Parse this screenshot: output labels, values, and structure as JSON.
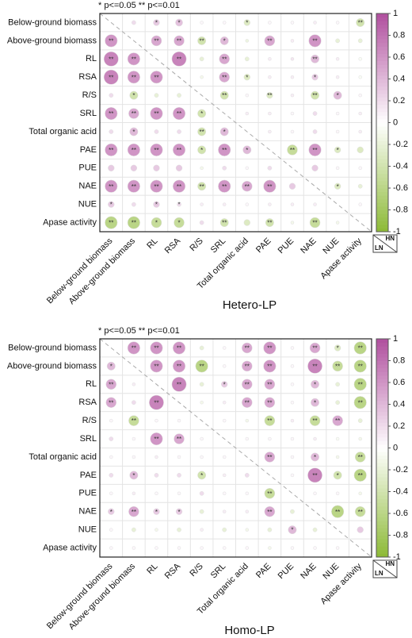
{
  "chart_data": [
    {
      "type": "corrplot",
      "title": "Hetero-LP",
      "note": "* p<=0.05  ** p<=0.01",
      "variables": [
        "Below-ground biomass",
        "Above-ground biomass",
        "RL",
        "RSA",
        "R/S",
        "SRL",
        "Total organic acid",
        "PAE",
        "PUE",
        "NAE",
        "NUE",
        "Apase activity"
      ],
      "corner_labels": {
        "upper": "HN",
        "lower": "LN"
      },
      "clim": [
        -1,
        1
      ],
      "cticks": [
        1,
        0.8,
        0.6,
        0.4,
        0.2,
        0,
        -0.2,
        -0.4,
        -0.6,
        -0.8,
        -1
      ],
      "colors": {
        "negative": "#8cb935",
        "zero": "#ffffff",
        "positive": "#b04f9e"
      },
      "values": [
        [
          null,
          0.2,
          0.3,
          0.35,
          0.05,
          0.05,
          -0.3,
          0.05,
          0.05,
          0.1,
          0.05,
          -0.4
        ],
        [
          0.6,
          null,
          0.5,
          0.5,
          -0.4,
          0.4,
          -0.15,
          0.5,
          0.1,
          0.6,
          -0.2,
          -0.2
        ],
        [
          0.7,
          0.6,
          null,
          0.7,
          -0.2,
          0.5,
          -0.2,
          0.1,
          0.15,
          0.4,
          0.1,
          -0.05
        ],
        [
          0.7,
          0.6,
          0.6,
          null,
          -0.1,
          0.5,
          -0.3,
          0.1,
          0.1,
          0.3,
          0.1,
          -0.05
        ],
        [
          0.2,
          -0.4,
          -0.2,
          -0.2,
          null,
          -0.4,
          0.05,
          -0.3,
          0.1,
          -0.4,
          0.4,
          0.05
        ],
        [
          0.6,
          0.5,
          0.6,
          0.6,
          -0.4,
          null,
          0.1,
          0.1,
          0.05,
          0.2,
          0.05,
          0.1
        ],
        [
          0.2,
          0.4,
          0.2,
          0.2,
          -0.4,
          0.4,
          null,
          0.1,
          0.05,
          0.2,
          0.05,
          0.1
        ],
        [
          0.6,
          0.6,
          0.6,
          0.6,
          -0.4,
          0.6,
          0.4,
          null,
          -0.5,
          0.6,
          -0.3,
          -0.3
        ],
        [
          0.3,
          0.3,
          0.3,
          0.3,
          -0.1,
          0.2,
          0.05,
          0.2,
          null,
          0.3,
          0.05,
          0.05
        ],
        [
          0.6,
          0.6,
          0.6,
          0.6,
          -0.4,
          0.6,
          0.5,
          0.6,
          0.3,
          null,
          -0.3,
          -0.2
        ],
        [
          0.3,
          0.2,
          0.3,
          0.2,
          0.1,
          0.1,
          0.05,
          0.1,
          0.1,
          0.1,
          null,
          0.05
        ],
        [
          -0.6,
          -0.6,
          -0.5,
          -0.5,
          0.2,
          -0.4,
          -0.3,
          -0.4,
          -0.1,
          -0.5,
          -0.1,
          null
        ]
      ],
      "significance": [
        [
          null,
          null,
          "*",
          "*",
          null,
          null,
          "*",
          null,
          null,
          null,
          null,
          "**"
        ],
        [
          "**",
          null,
          "**",
          "**",
          "**",
          "*",
          null,
          "**",
          null,
          "**",
          null,
          null
        ],
        [
          "**",
          "**",
          null,
          "**",
          null,
          "**",
          null,
          null,
          null,
          "**",
          null,
          null
        ],
        [
          "**",
          "**",
          "**",
          null,
          null,
          "**",
          "*",
          null,
          null,
          "*",
          null,
          null
        ],
        [
          null,
          "*",
          null,
          null,
          null,
          "**",
          null,
          "**",
          null,
          "**",
          "*",
          null
        ],
        [
          "**",
          "**",
          "**",
          "**",
          "*",
          null,
          null,
          null,
          null,
          null,
          null,
          null
        ],
        [
          null,
          "*",
          null,
          null,
          "**",
          "*",
          null,
          null,
          null,
          null,
          null,
          null
        ],
        [
          "**",
          "**",
          "**",
          "**",
          "*",
          "**",
          "*",
          null,
          "**",
          "**",
          "*",
          null
        ],
        [
          null,
          null,
          null,
          null,
          null,
          null,
          null,
          null,
          null,
          null,
          null,
          null
        ],
        [
          "**",
          "**",
          "**",
          "**",
          "**",
          "**",
          "**",
          "**",
          null,
          null,
          "*",
          null
        ],
        [
          "*",
          null,
          "*",
          "*",
          null,
          null,
          null,
          null,
          null,
          null,
          null,
          null
        ],
        [
          "**",
          "**",
          "*",
          "*",
          null,
          "**",
          null,
          "**",
          null,
          "**",
          null,
          null
        ]
      ]
    },
    {
      "type": "corrplot",
      "title": "Homo-LP",
      "note": "* p<=0.05  ** p<=0.01",
      "variables": [
        "Below-ground biomass",
        "Above-ground biomass",
        "RL",
        "RSA",
        "R/S",
        "SRL",
        "Total organic acid",
        "PAE",
        "PUE",
        "NAE",
        "NUE",
        "Apase activity"
      ],
      "corner_labels": {
        "upper": "HN",
        "lower": "LN"
      },
      "clim": [
        -1,
        1
      ],
      "cticks": [
        1,
        0.8,
        0.6,
        0.4,
        0.2,
        0,
        -0.2,
        -0.4,
        -0.6,
        -0.8,
        -1
      ],
      "colors": {
        "negative": "#8cb935",
        "zero": "#ffffff",
        "positive": "#b04f9e"
      },
      "values": [
        [
          null,
          0.6,
          0.6,
          0.6,
          -0.2,
          0.05,
          0.5,
          0.6,
          0.05,
          0.5,
          -0.3,
          -0.6
        ],
        [
          0.4,
          null,
          0.6,
          0.6,
          -0.6,
          0.05,
          0.5,
          0.6,
          0.05,
          0.7,
          -0.5,
          -0.6
        ],
        [
          0.5,
          0.1,
          null,
          0.7,
          -0.2,
          0.3,
          0.5,
          0.5,
          0.05,
          0.4,
          -0.2,
          -0.6
        ],
        [
          0.5,
          0.2,
          0.7,
          null,
          -0.1,
          0.1,
          0.5,
          0.5,
          0.05,
          0.4,
          -0.2,
          -0.6
        ],
        [
          0.05,
          -0.5,
          0.05,
          0.05,
          null,
          0.05,
          -0.1,
          -0.5,
          0.1,
          -0.5,
          0.5,
          -0.2
        ],
        [
          0.2,
          0.05,
          0.6,
          0.5,
          0.05,
          null,
          0.05,
          0.05,
          0.05,
          0.1,
          -0.05,
          -0.1
        ],
        [
          0.05,
          0.05,
          0.1,
          0.05,
          0.05,
          0.05,
          null,
          0.5,
          0.05,
          0.4,
          -0.1,
          -0.5
        ],
        [
          0.2,
          0.4,
          0.2,
          0.2,
          -0.4,
          0.1,
          0.2,
          null,
          0.05,
          0.7,
          -0.4,
          -0.6
        ],
        [
          0.05,
          0.1,
          0.05,
          0.05,
          0.2,
          0.05,
          0.05,
          -0.5,
          null,
          0.05,
          0.05,
          -0.1
        ],
        [
          0.3,
          0.5,
          0.3,
          0.3,
          -0.2,
          0.1,
          0.1,
          0.5,
          -0.2,
          null,
          -0.6,
          -0.5
        ],
        [
          0.05,
          -0.2,
          -0.1,
          -0.2,
          0.1,
          -0.2,
          -0.1,
          -0.2,
          0.4,
          -0.2,
          null,
          0.3
        ],
        [
          0.05,
          0.05,
          0.05,
          0.05,
          0.05,
          0.05,
          0.05,
          -0.1,
          0.05,
          0.05,
          0.05,
          null
        ]
      ],
      "significance": [
        [
          null,
          "**",
          "**",
          "**",
          null,
          null,
          "**",
          "**",
          null,
          "**",
          "*",
          "**"
        ],
        [
          "*",
          null,
          "**",
          "**",
          "**",
          null,
          "**",
          "**",
          null,
          "**",
          "**",
          "**"
        ],
        [
          "**",
          null,
          null,
          "**",
          null,
          "*",
          "**",
          "**",
          null,
          "*",
          null,
          "**"
        ],
        [
          "**",
          null,
          "**",
          null,
          null,
          null,
          "**",
          "**",
          null,
          "*",
          null,
          "**"
        ],
        [
          null,
          "**",
          null,
          null,
          null,
          null,
          null,
          "**",
          null,
          "**",
          "**",
          null
        ],
        [
          null,
          null,
          "**",
          "**",
          null,
          null,
          null,
          null,
          null,
          null,
          null,
          null
        ],
        [
          null,
          null,
          null,
          null,
          null,
          null,
          null,
          "**",
          null,
          "*",
          null,
          "**"
        ],
        [
          null,
          "*",
          null,
          null,
          "*",
          null,
          null,
          null,
          null,
          "**",
          "*",
          "**"
        ],
        [
          null,
          null,
          null,
          null,
          null,
          null,
          null,
          "**",
          null,
          null,
          null,
          null
        ],
        [
          "*",
          "**",
          "*",
          "*",
          null,
          null,
          null,
          "**",
          null,
          null,
          "**",
          "**"
        ],
        [
          null,
          null,
          null,
          null,
          null,
          null,
          null,
          null,
          "*",
          null,
          null,
          null
        ],
        [
          null,
          null,
          null,
          null,
          null,
          null,
          null,
          null,
          null,
          null,
          null,
          null
        ]
      ]
    }
  ]
}
